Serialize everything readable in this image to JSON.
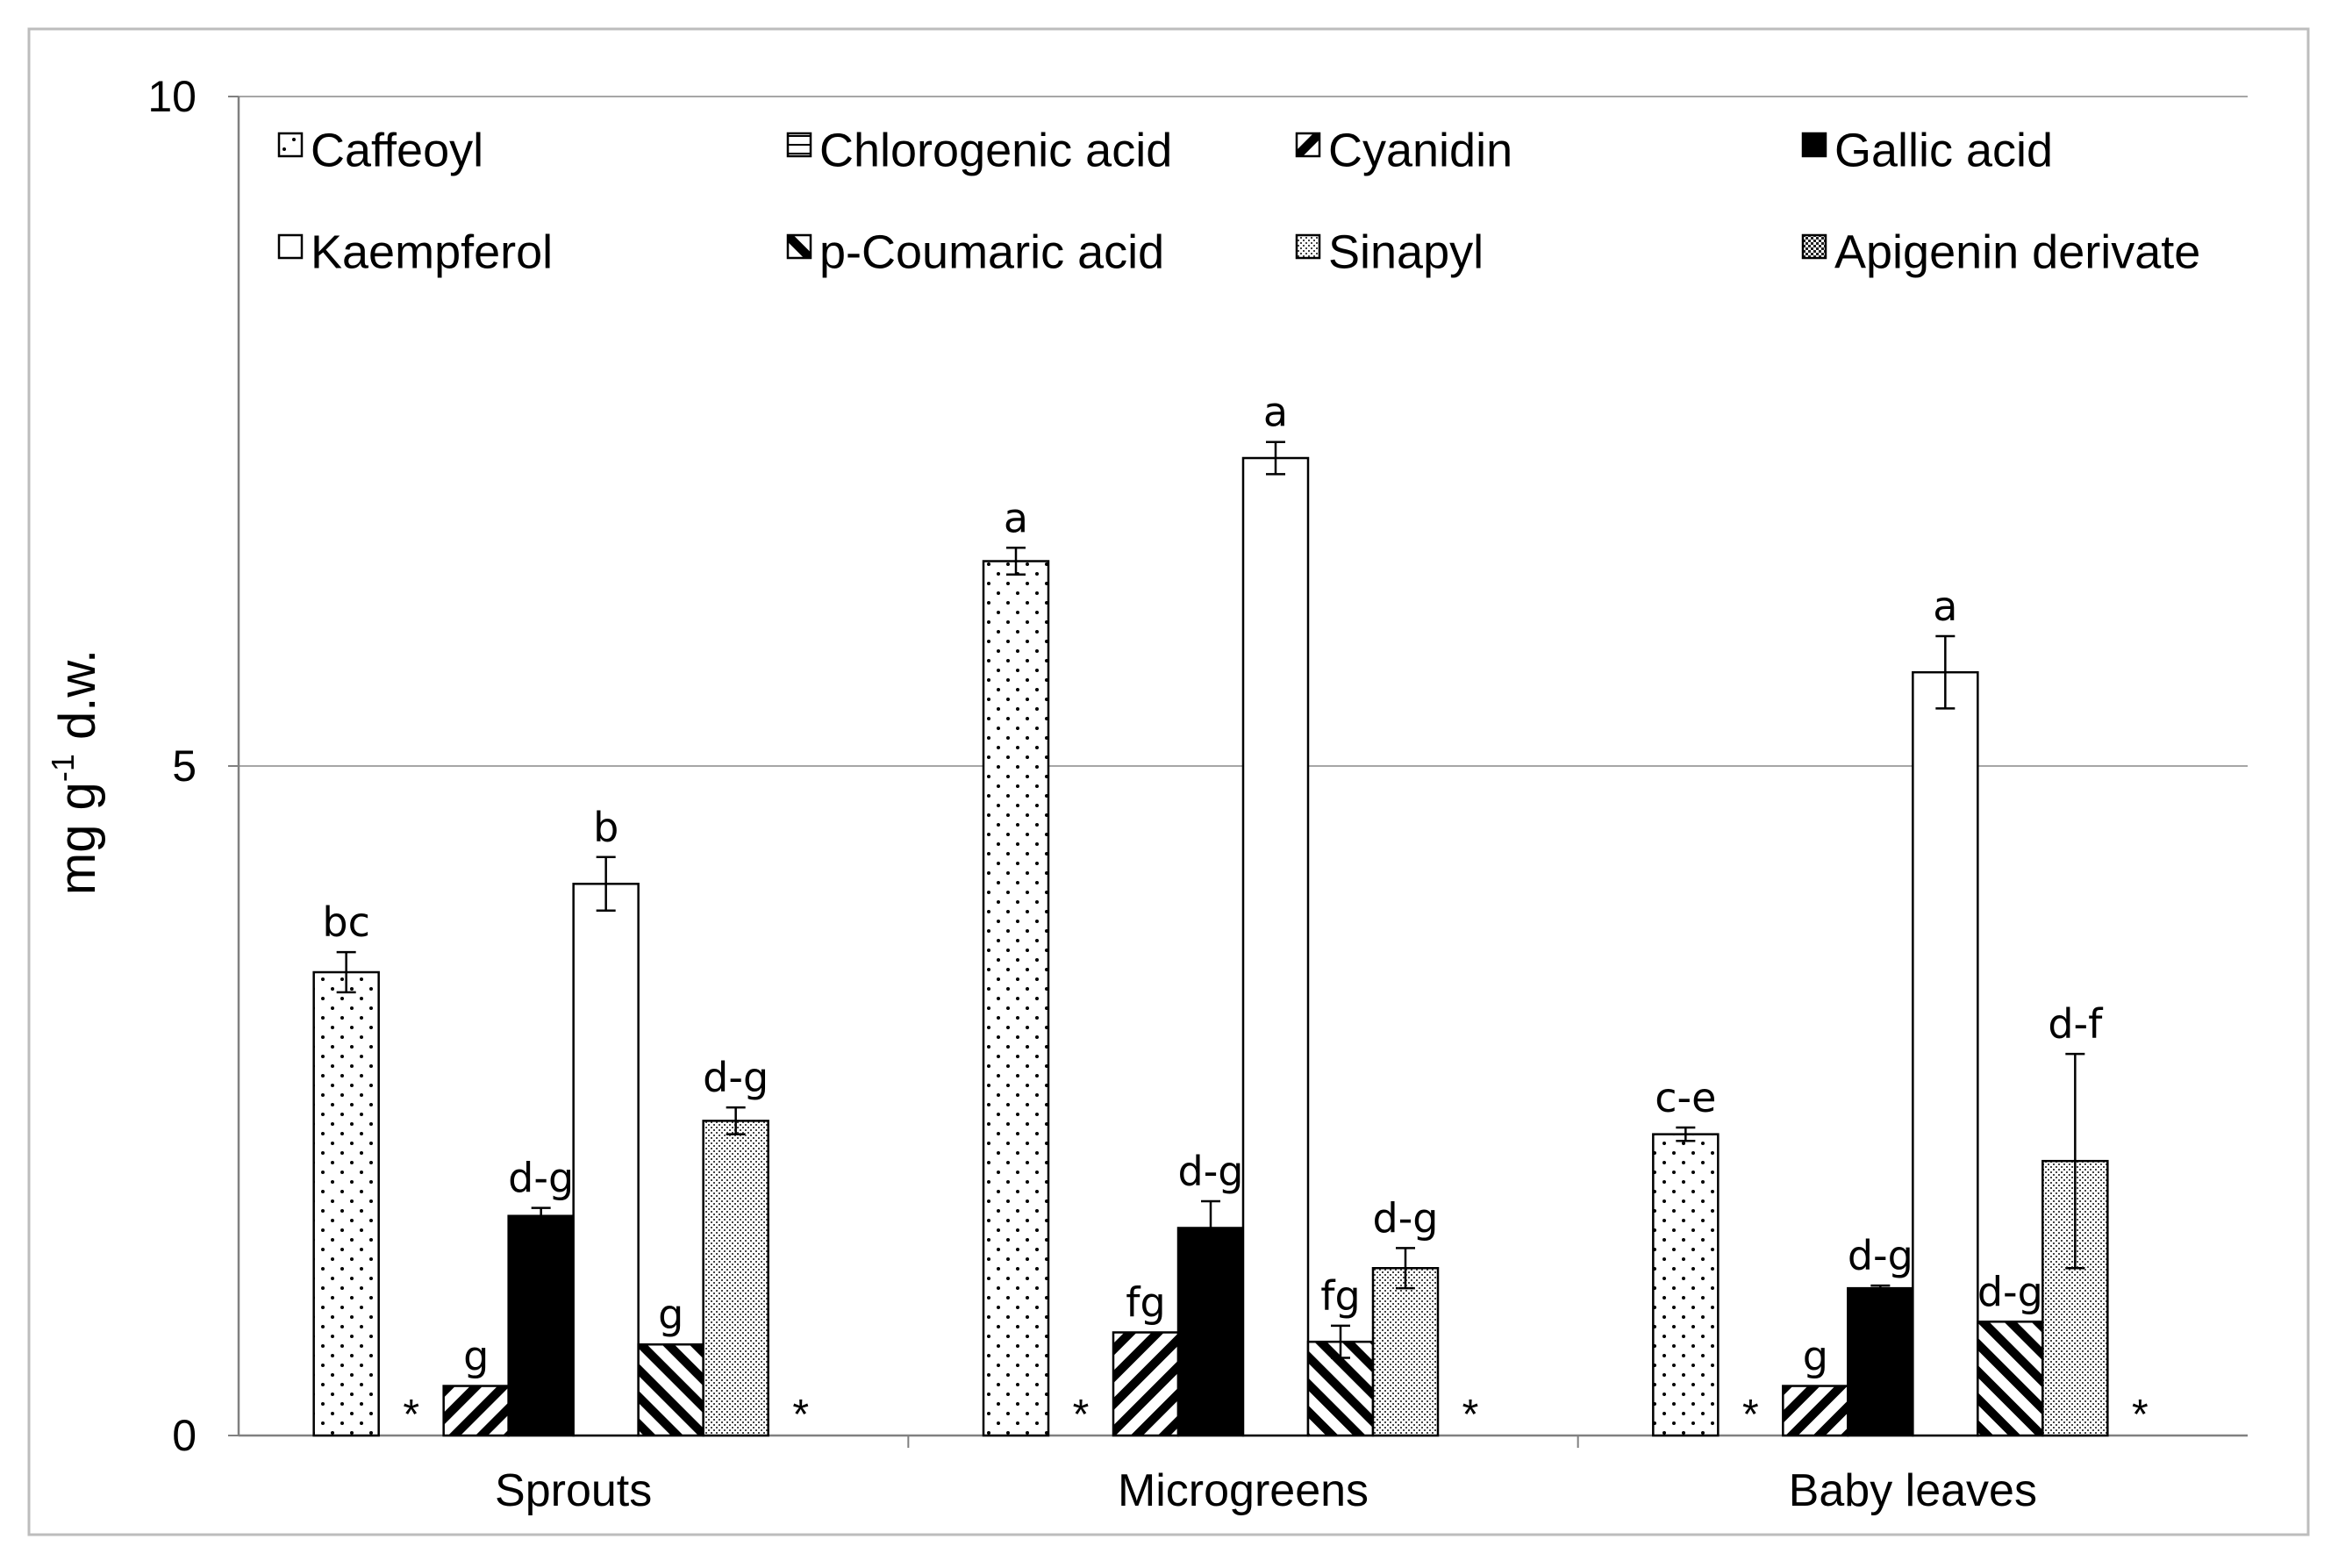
{
  "chart_data": {
    "type": "bar",
    "ylabel": "mg g",
    "ylabel_sup": "-1",
    "ylabel_suffix": " d.w.",
    "ylim": [
      0,
      10
    ],
    "yticks": [
      "0",
      "5",
      "10"
    ],
    "grid": "horizontal",
    "legend_position": "top",
    "categories": [
      "Sprouts",
      "Microgreens",
      "Baby leaves"
    ],
    "series": [
      {
        "name": "Caffeoyl",
        "pattern": "dots",
        "values": [
          3.46,
          6.53,
          2.25
        ],
        "errors": [
          0.15,
          0.1,
          0.05
        ],
        "labels": [
          "bc",
          "a",
          "c-e"
        ],
        "missing": [
          false,
          false,
          false
        ]
      },
      {
        "name": "Chlorogenic acid",
        "pattern": "hline",
        "values": [
          0,
          0,
          0
        ],
        "errors": [
          0,
          0,
          0
        ],
        "labels": [
          "",
          "",
          ""
        ],
        "missing": [
          true,
          true,
          true
        ]
      },
      {
        "name": "Cyanidin",
        "pattern": "diag-fwd",
        "values": [
          0.37,
          0.77,
          0.37
        ],
        "errors": [
          0,
          0,
          0
        ],
        "labels": [
          "g",
          "fg",
          "g"
        ],
        "missing": [
          false,
          false,
          false
        ]
      },
      {
        "name": "Gallic acid",
        "pattern": "solid",
        "values": [
          1.64,
          1.55,
          1.1
        ],
        "errors": [
          0.06,
          0.2,
          0.02
        ],
        "labels": [
          "d-g",
          "d-g",
          "d-g"
        ],
        "missing": [
          false,
          false,
          false
        ]
      },
      {
        "name": "Kaempferol",
        "pattern": "white",
        "values": [
          4.12,
          7.3,
          5.7
        ],
        "errors": [
          0.2,
          0.12,
          0.27
        ],
        "labels": [
          "b",
          "a",
          "a"
        ],
        "missing": [
          false,
          false,
          false
        ]
      },
      {
        "name": "p-Coumaric acid",
        "pattern": "diag-back",
        "values": [
          0.68,
          0.7,
          0.85
        ],
        "errors": [
          0,
          0.12,
          0
        ],
        "labels": [
          "g",
          "fg",
          "d-g"
        ],
        "missing": [
          false,
          false,
          false
        ]
      },
      {
        "name": "Sinapyl",
        "pattern": "fine-dots",
        "values": [
          2.35,
          1.25,
          2.05
        ],
        "errors": [
          0.1,
          0.15,
          0.8
        ],
        "labels": [
          "d-g",
          "d-g",
          "d-f"
        ],
        "missing": [
          false,
          false,
          false
        ]
      },
      {
        "name": "Apigenin derivate",
        "pattern": "checker",
        "values": [
          0,
          0,
          0
        ],
        "errors": [
          0,
          0,
          0
        ],
        "labels": [
          "",
          "",
          ""
        ],
        "missing": [
          true,
          true,
          true
        ]
      }
    ],
    "missing_marker": "*"
  }
}
